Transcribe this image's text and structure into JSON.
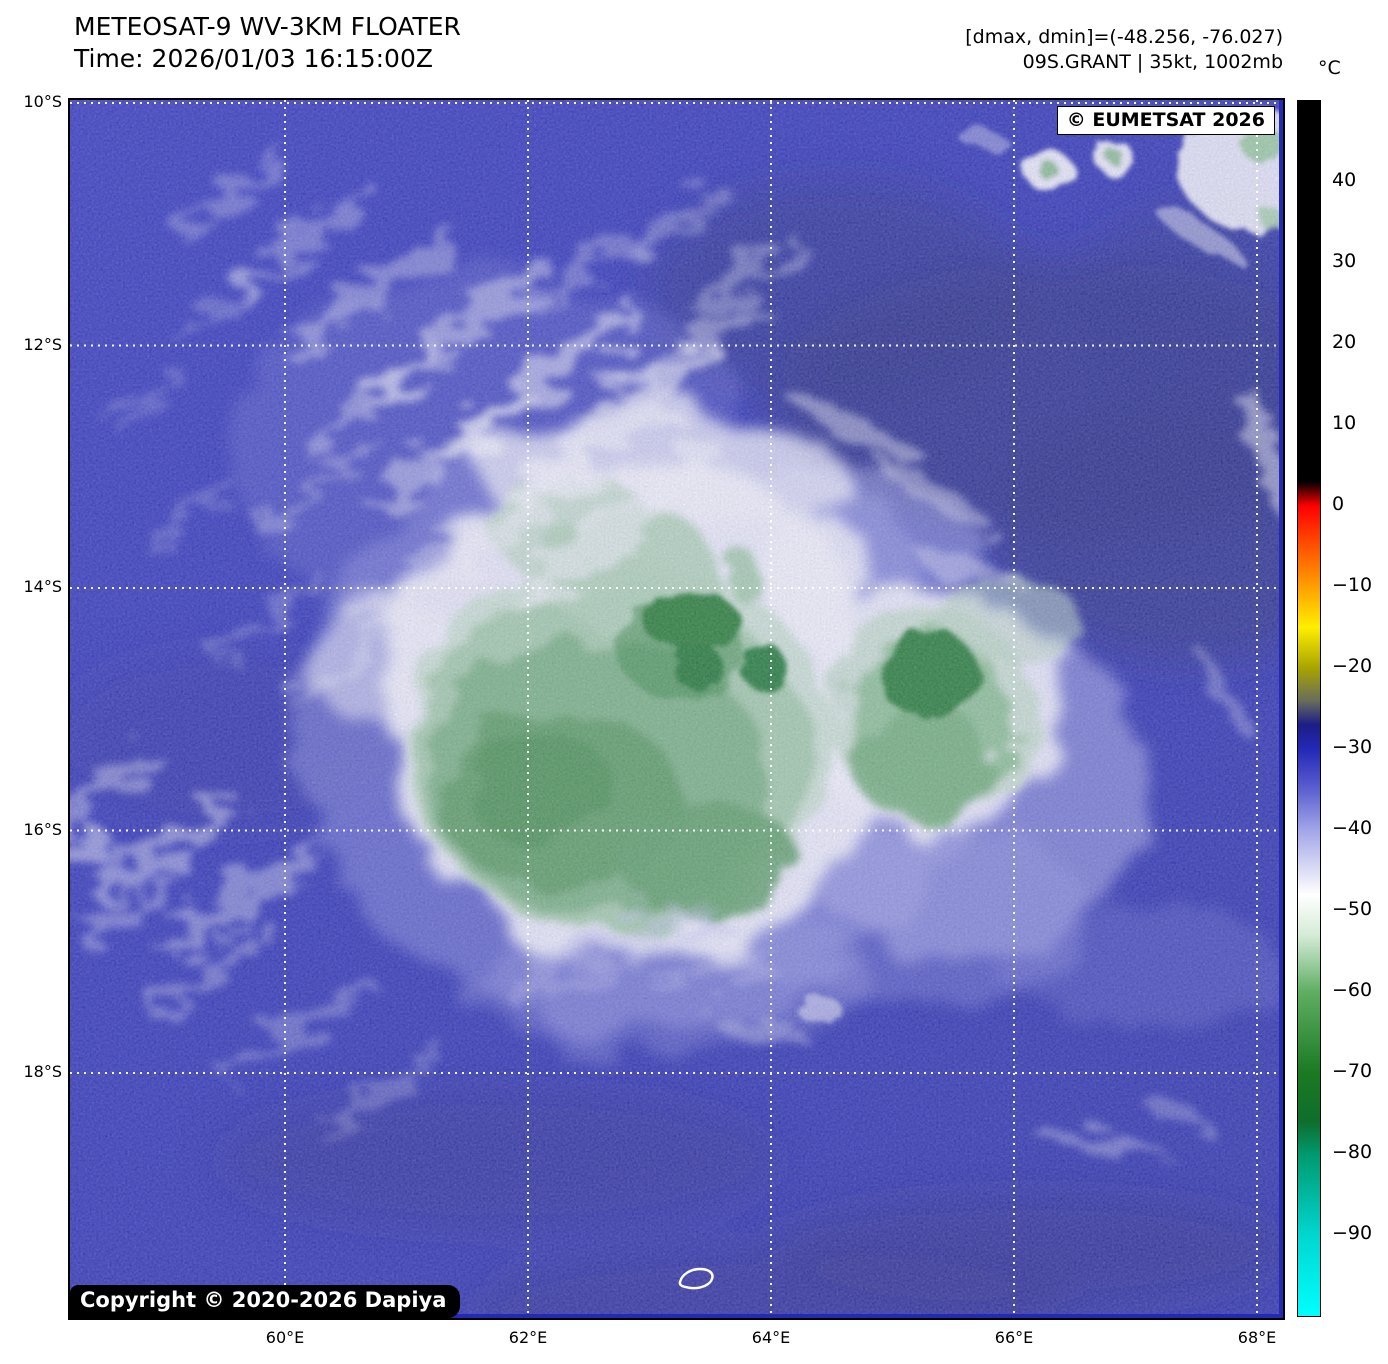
{
  "figure": {
    "title_line1": "METEOSAT-9 WV-3KM FLOATER",
    "title_line2": "Time: 2026/01/03 16:15:00Z",
    "annotation_right_line1": "[dmax, dmin]=(-48.256, -76.027)",
    "annotation_right_line2": "09S.GRANT | 35kt, 1002mb"
  },
  "storm": {
    "designation": "09S.GRANT",
    "intensity": "35kt",
    "pressure": "1002mb",
    "dmax": "-48.256",
    "dmin": "-76.027"
  },
  "map": {
    "watermark": "© EUMETSAT 2026",
    "copyright_badge": "Copyright © 2020-2026 Dapiya",
    "x_axis_labels": [
      "60°E",
      "62°E",
      "64°E",
      "66°E",
      "68°E"
    ],
    "y_axis_labels": [
      "10°S",
      "12°S",
      "14°S",
      "16°S",
      "18°S"
    ]
  },
  "colorbar": {
    "unit_label": "°C",
    "range": {
      "max": 50,
      "min": -100
    },
    "ticks": [
      {
        "label": "40",
        "value": 40
      },
      {
        "label": "30",
        "value": 30
      },
      {
        "label": "20",
        "value": 20
      },
      {
        "label": "10",
        "value": 10
      },
      {
        "label": "0",
        "value": 0
      },
      {
        "label": "−10",
        "value": -10
      },
      {
        "label": "−20",
        "value": -20
      },
      {
        "label": "−30",
        "value": -30
      },
      {
        "label": "−40",
        "value": -40
      },
      {
        "label": "−50",
        "value": -50
      },
      {
        "label": "−60",
        "value": -60
      },
      {
        "label": "−70",
        "value": -70
      },
      {
        "label": "−80",
        "value": -80
      },
      {
        "label": "−90",
        "value": -90
      }
    ],
    "gradient_stops": [
      {
        "value": 50,
        "color": "#000000"
      },
      {
        "value": 3,
        "color": "#000000"
      },
      {
        "value": 0,
        "color": "#ff0000"
      },
      {
        "value": -5,
        "color": "#ff5200"
      },
      {
        "value": -10,
        "color": "#ffa000"
      },
      {
        "value": -15,
        "color": "#ffee00"
      },
      {
        "value": -20,
        "color": "#a8a400"
      },
      {
        "value": -24,
        "color": "#6a6e5a"
      },
      {
        "value": -27,
        "color": "#1c1d86"
      },
      {
        "value": -30,
        "color": "#2328b6"
      },
      {
        "value": -35,
        "color": "#5c60d0"
      },
      {
        "value": -40,
        "color": "#a2a5e8"
      },
      {
        "value": -45,
        "color": "#dcddf5"
      },
      {
        "value": -48,
        "color": "#ffffff"
      },
      {
        "value": -53,
        "color": "#d5ebd7"
      },
      {
        "value": -60,
        "color": "#5fae63"
      },
      {
        "value": -70,
        "color": "#1a7a22"
      },
      {
        "value": -76,
        "color": "#0e6e2c"
      },
      {
        "value": -80,
        "color": "#00996e"
      },
      {
        "value": -90,
        "color": "#00d6d0"
      },
      {
        "value": -100,
        "color": "#00ffff"
      }
    ]
  }
}
